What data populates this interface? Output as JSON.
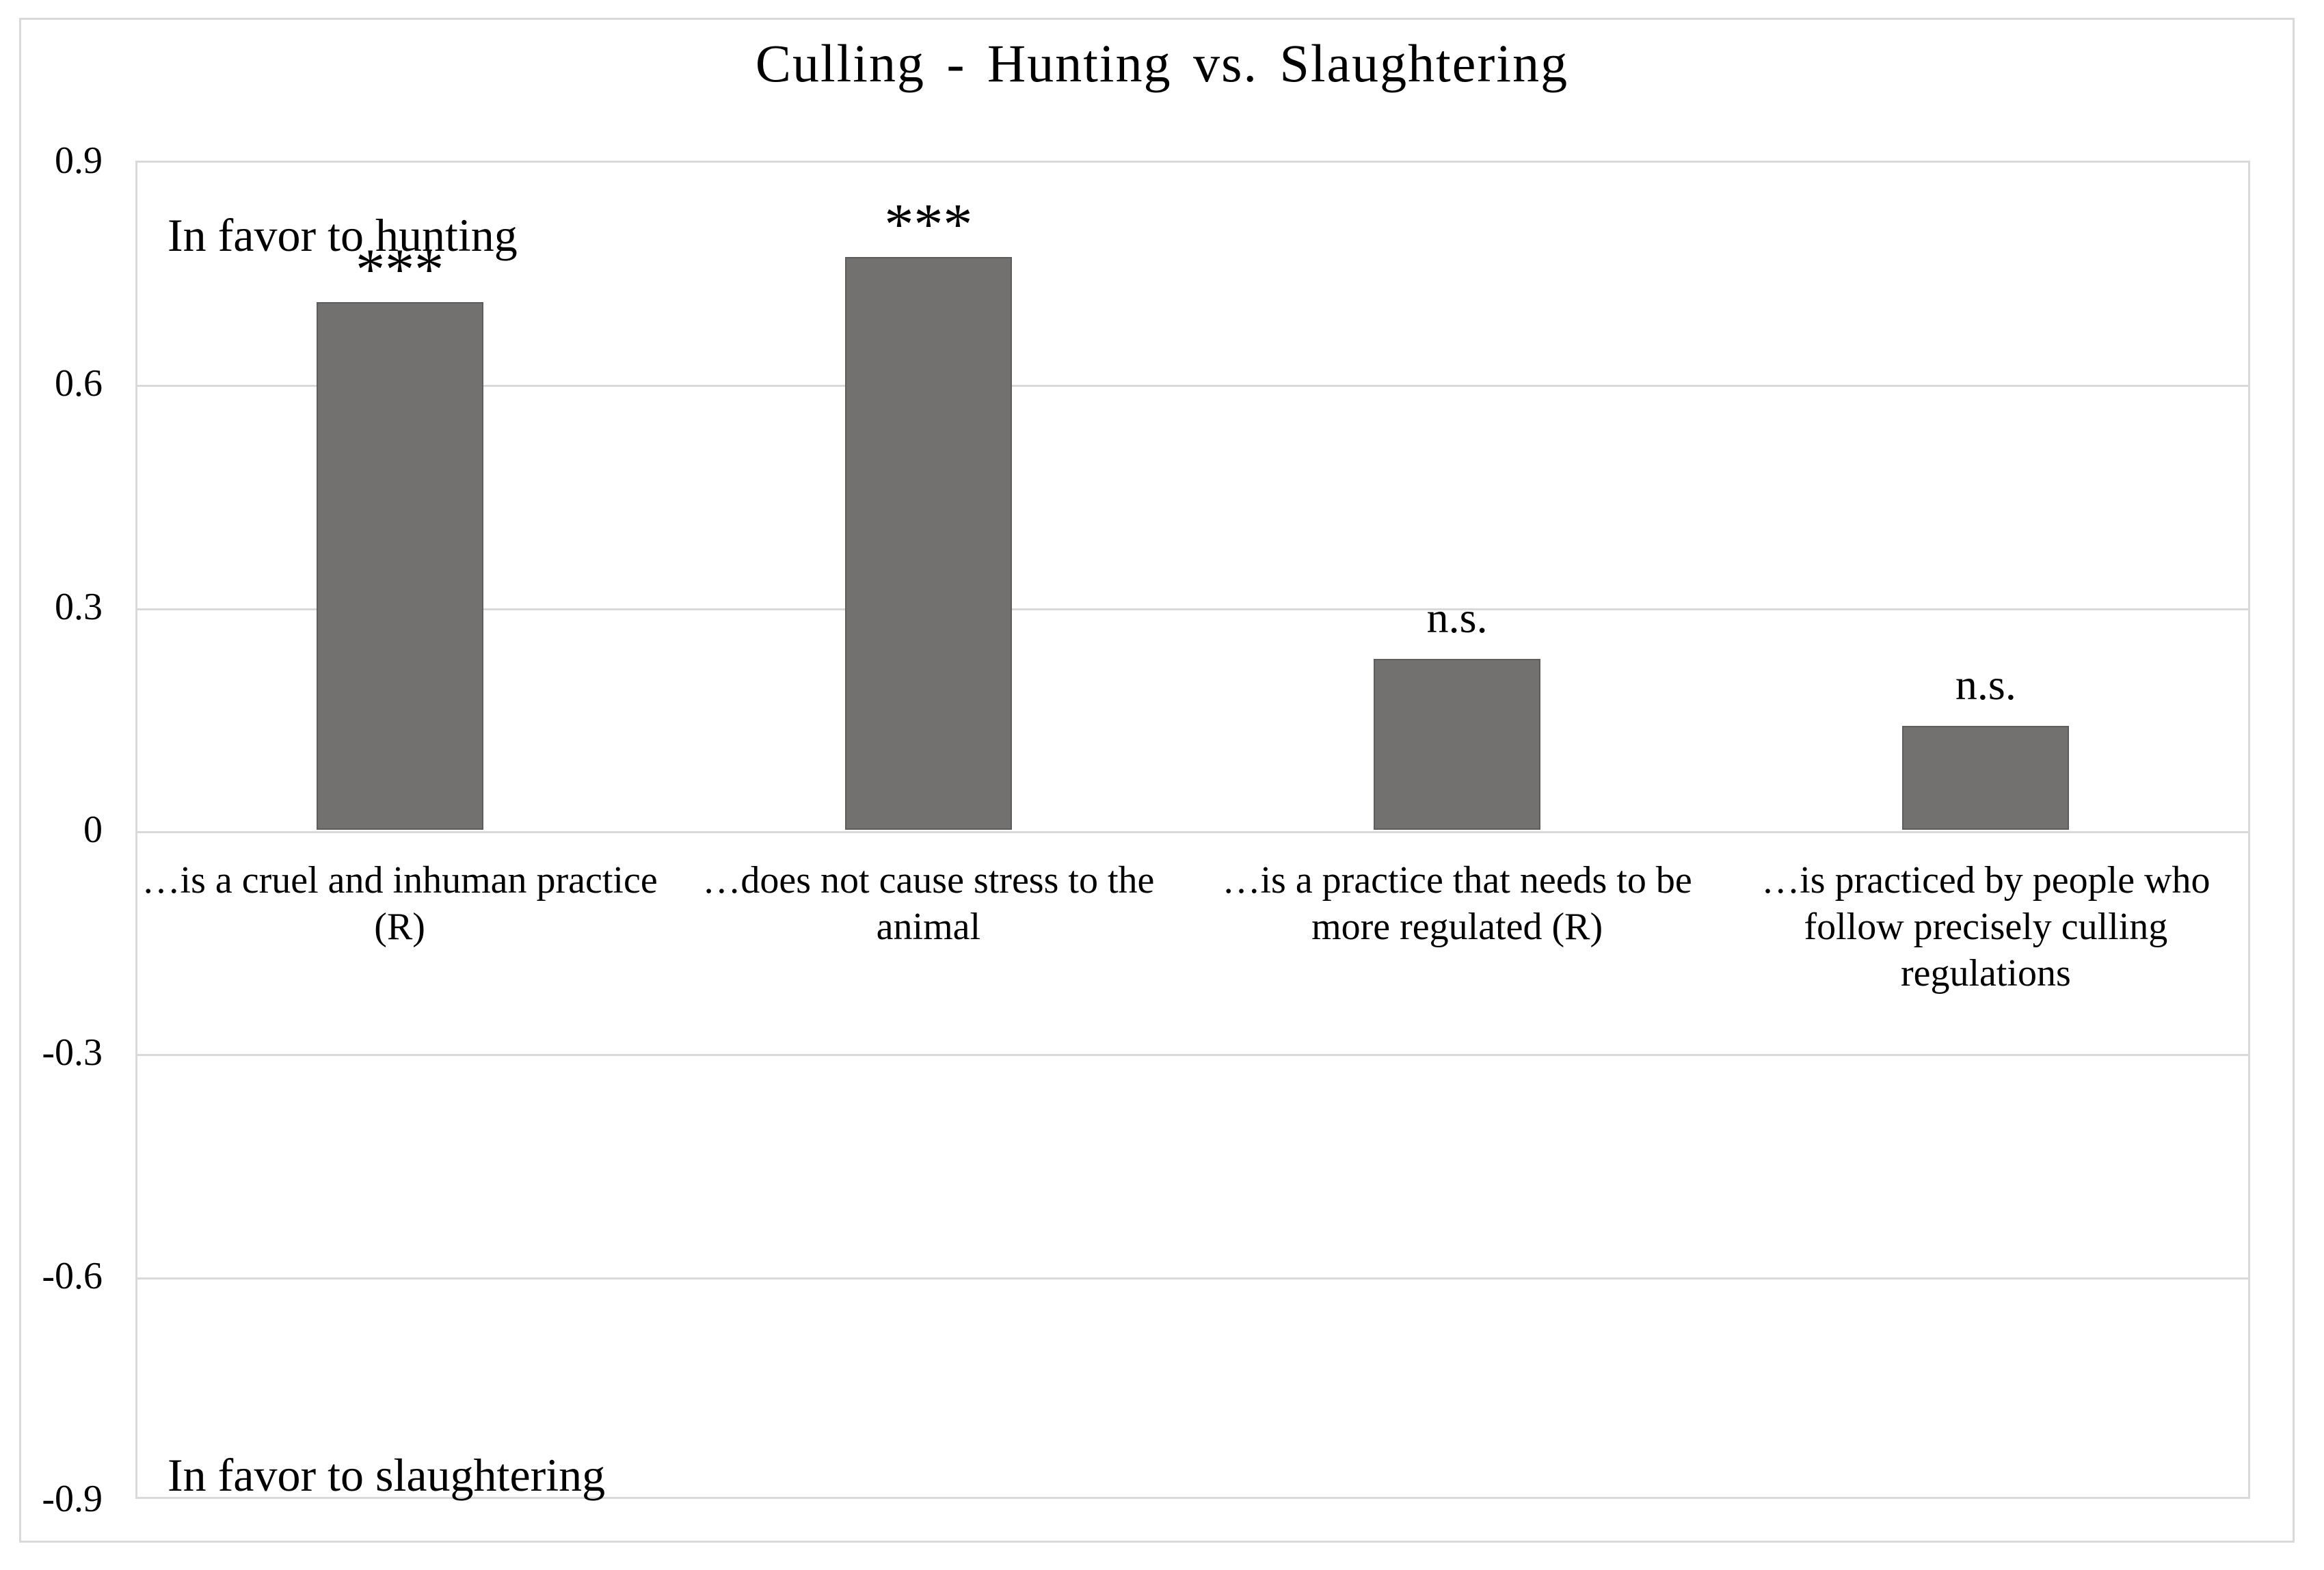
{
  "title": "Culling - Hunting vs. Slaughtering",
  "annotations": {
    "top_left": "In favor to hunting",
    "bottom_left": "In favor to slaughtering"
  },
  "chart_data": {
    "type": "bar",
    "title": "Culling - Hunting vs. Slaughtering",
    "categories": [
      "…is a cruel and inhuman practice (R)",
      "…does not cause stress to the animal",
      "…is a practice that needs to be more regulated (R)",
      "…is practiced by people who follow precisely culling regulations"
    ],
    "values": [
      0.71,
      0.77,
      0.23,
      0.14
    ],
    "significance_labels": [
      "***",
      "***",
      "n.s.",
      "n.s."
    ],
    "xlabel": "",
    "ylabel": "",
    "ylim": [
      -0.9,
      0.9
    ],
    "yticks": [
      0.9,
      0.6,
      0.3,
      0,
      -0.3,
      -0.6,
      -0.9
    ],
    "ytick_labels": [
      "0.9",
      "0.6",
      "0.3",
      "0",
      "-0.3",
      "-0.6",
      "-0.9"
    ],
    "grid": "horizontal",
    "legend": "none",
    "annotation_top": "In favor to hunting",
    "annotation_bottom": "In favor to slaughtering",
    "bar_color": "#737070",
    "bar_border_color": "#5f5c5c",
    "gridline_color": "#d9d9d9",
    "border_color": "#d9d9d9"
  }
}
